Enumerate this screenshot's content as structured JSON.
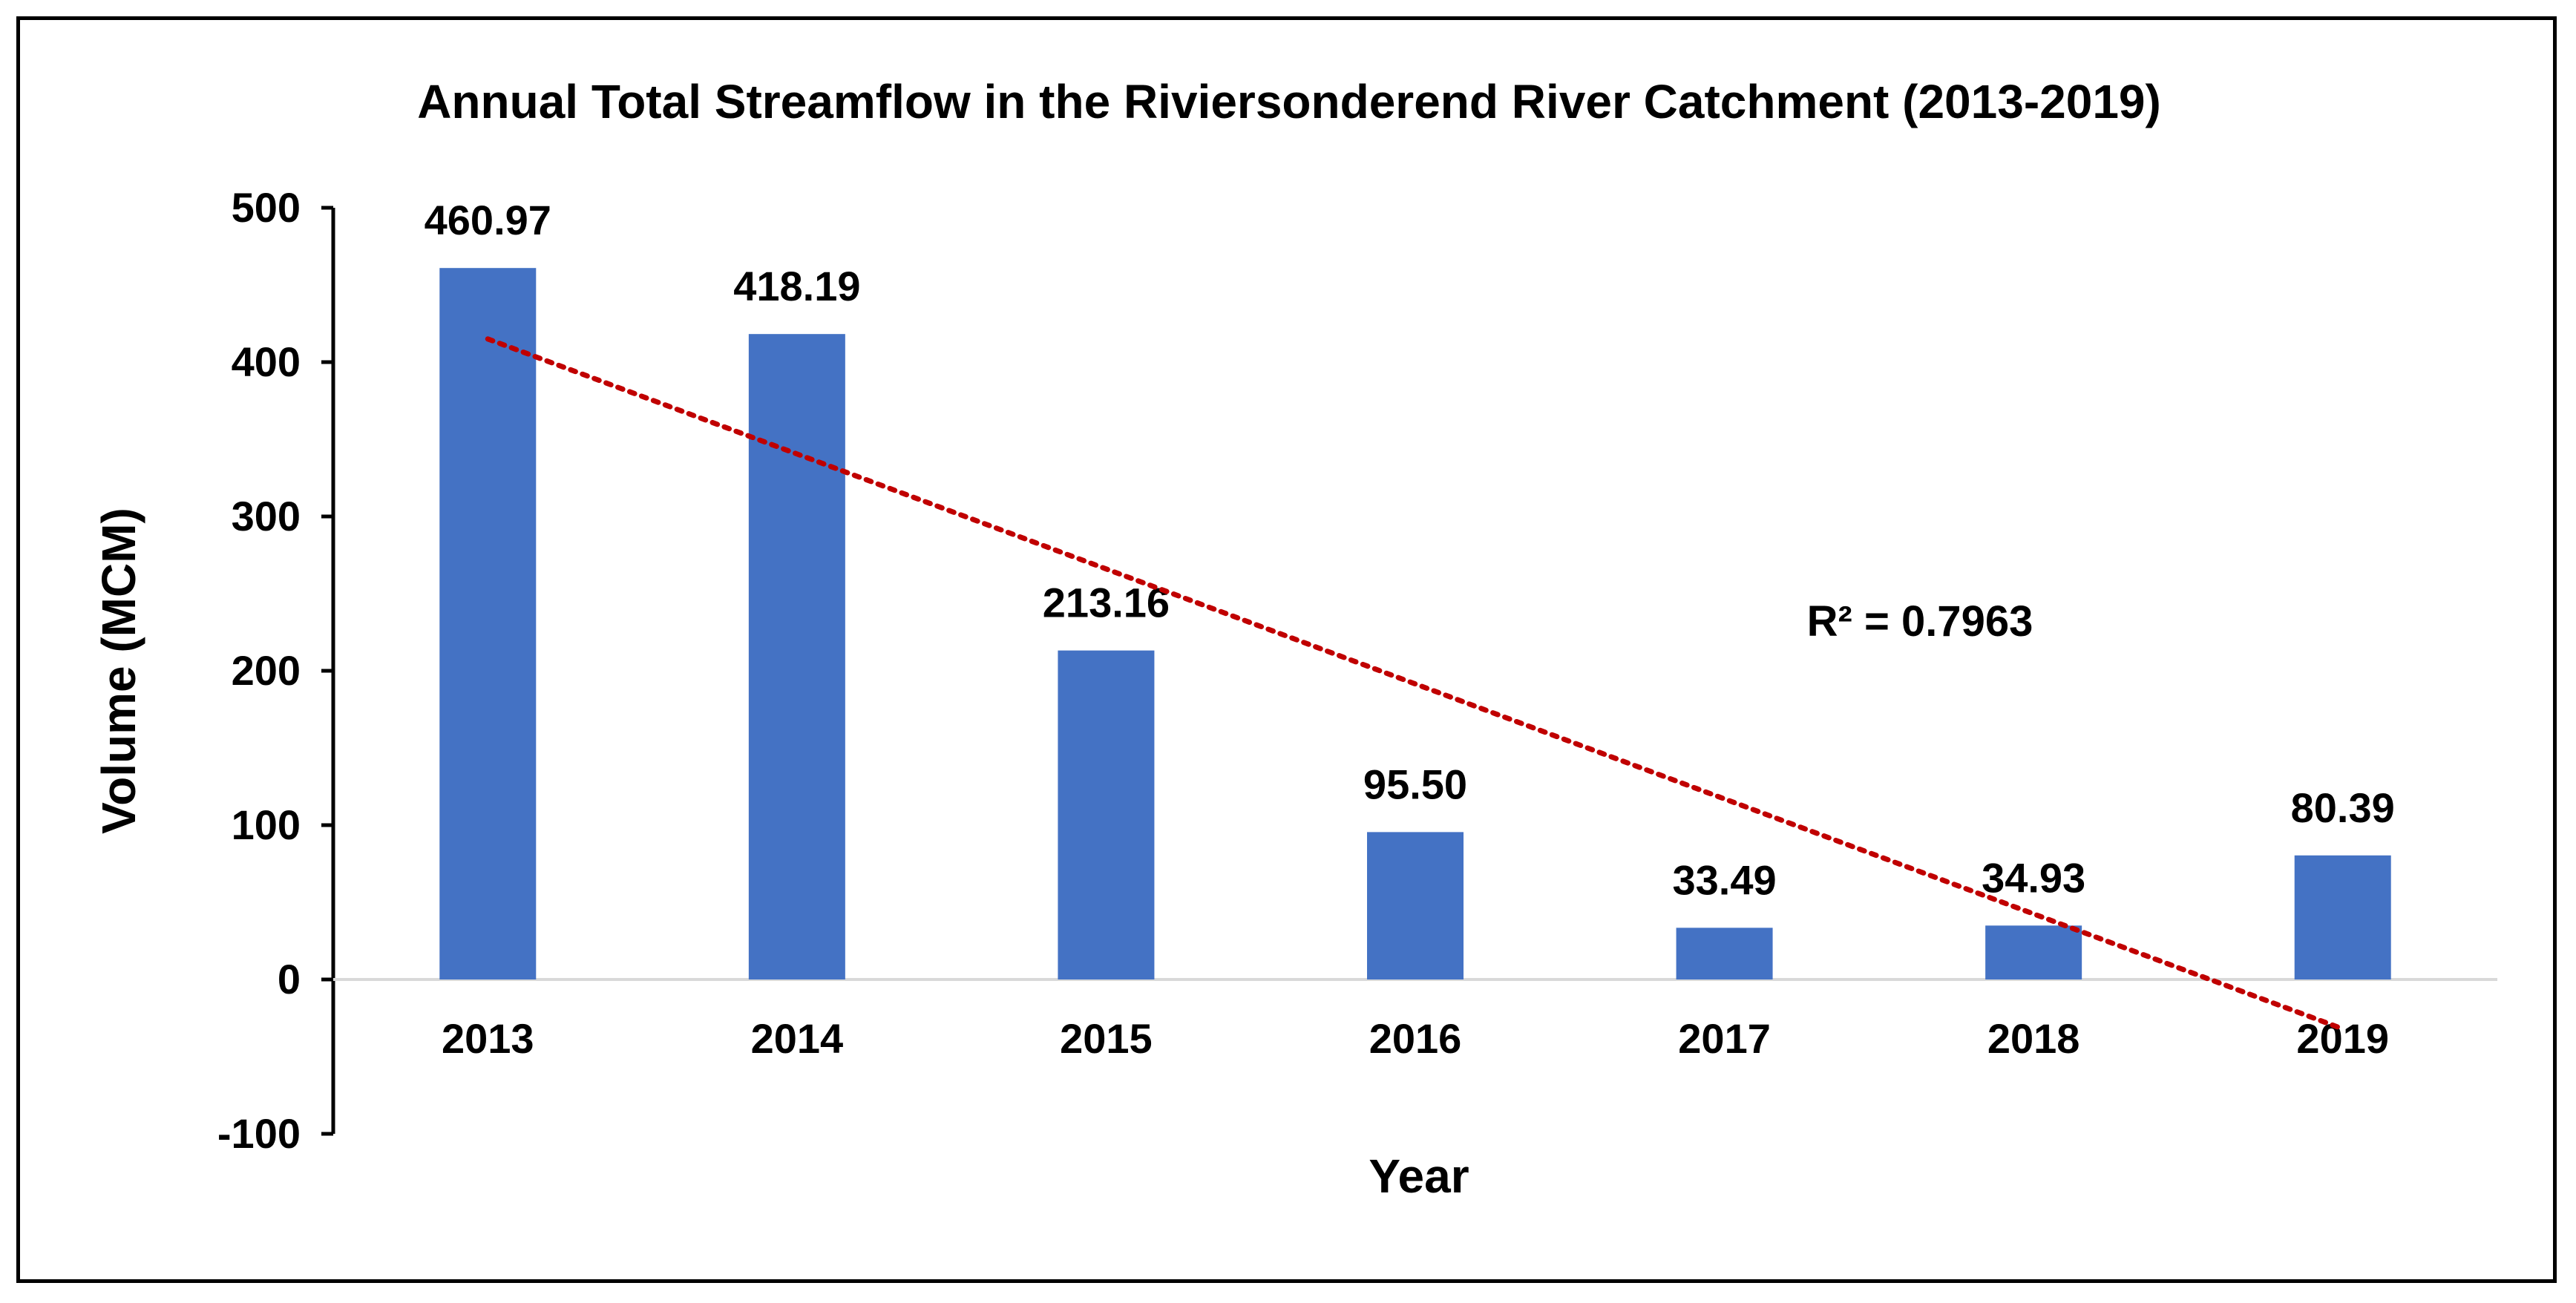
{
  "chart_data": {
    "type": "bar",
    "title": "Annual Total Streamflow in the Riviersonderend River Catchment (2013-2019)",
    "xlabel": "Year",
    "ylabel": "Volume (MCM)",
    "categories": [
      "2013",
      "2014",
      "2015",
      "2016",
      "2017",
      "2018",
      "2019"
    ],
    "series": [
      {
        "values": [
          460.97,
          418.19,
          213.16,
          95.5,
          33.49,
          34.93,
          80.39
        ],
        "data_labels": [
          "460.97",
          "418.19",
          "213.16",
          "95.50",
          "33.49",
          "34.93",
          "80.39"
        ],
        "color": "#4472C4"
      }
    ],
    "trendline": {
      "type": "linear",
      "style": "dotted",
      "color": "#C00000",
      "start": {
        "x": "2013",
        "y": 415
      },
      "end": {
        "x": "2019",
        "y": -32
      },
      "annotation": "R² = 0.7963"
    },
    "ylim": [
      -100,
      500
    ],
    "yticks": [
      -100,
      0,
      100,
      200,
      300,
      400,
      500
    ],
    "ytick_labels": [
      "-100",
      "0",
      "100",
      "200",
      "300",
      "400",
      "500"
    ],
    "grid": false,
    "legend": "none"
  }
}
